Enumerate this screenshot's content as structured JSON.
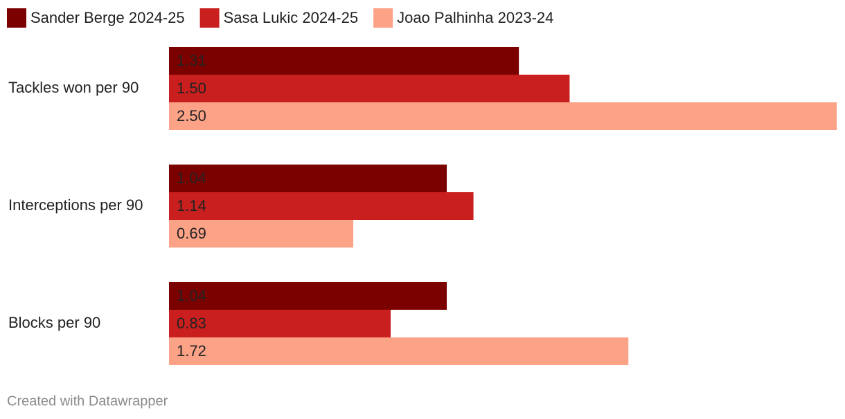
{
  "chart_data": {
    "type": "bar",
    "orientation": "horizontal",
    "categories": [
      "Tackles won per 90",
      "Interceptions per 90",
      "Blocks per 90"
    ],
    "series": [
      {
        "name": "Sander Berge 2024-25",
        "color": "#7b0000",
        "values": [
          1.31,
          1.04,
          1.04
        ],
        "value_labels": [
          "1.31",
          "1.04",
          "1.04"
        ]
      },
      {
        "name": "Sasa Lukic 2024-25",
        "color": "#c91f1f",
        "values": [
          1.5,
          1.14,
          0.83
        ],
        "value_labels": [
          "1.50",
          "1.14",
          "0.83"
        ]
      },
      {
        "name": "Joao Palhinha 2023-24",
        "color": "#fba287",
        "values": [
          2.5,
          0.69,
          1.72
        ],
        "value_labels": [
          "2.50",
          "0.69",
          "1.72"
        ]
      }
    ],
    "credit": "Created with Datawrapper"
  }
}
